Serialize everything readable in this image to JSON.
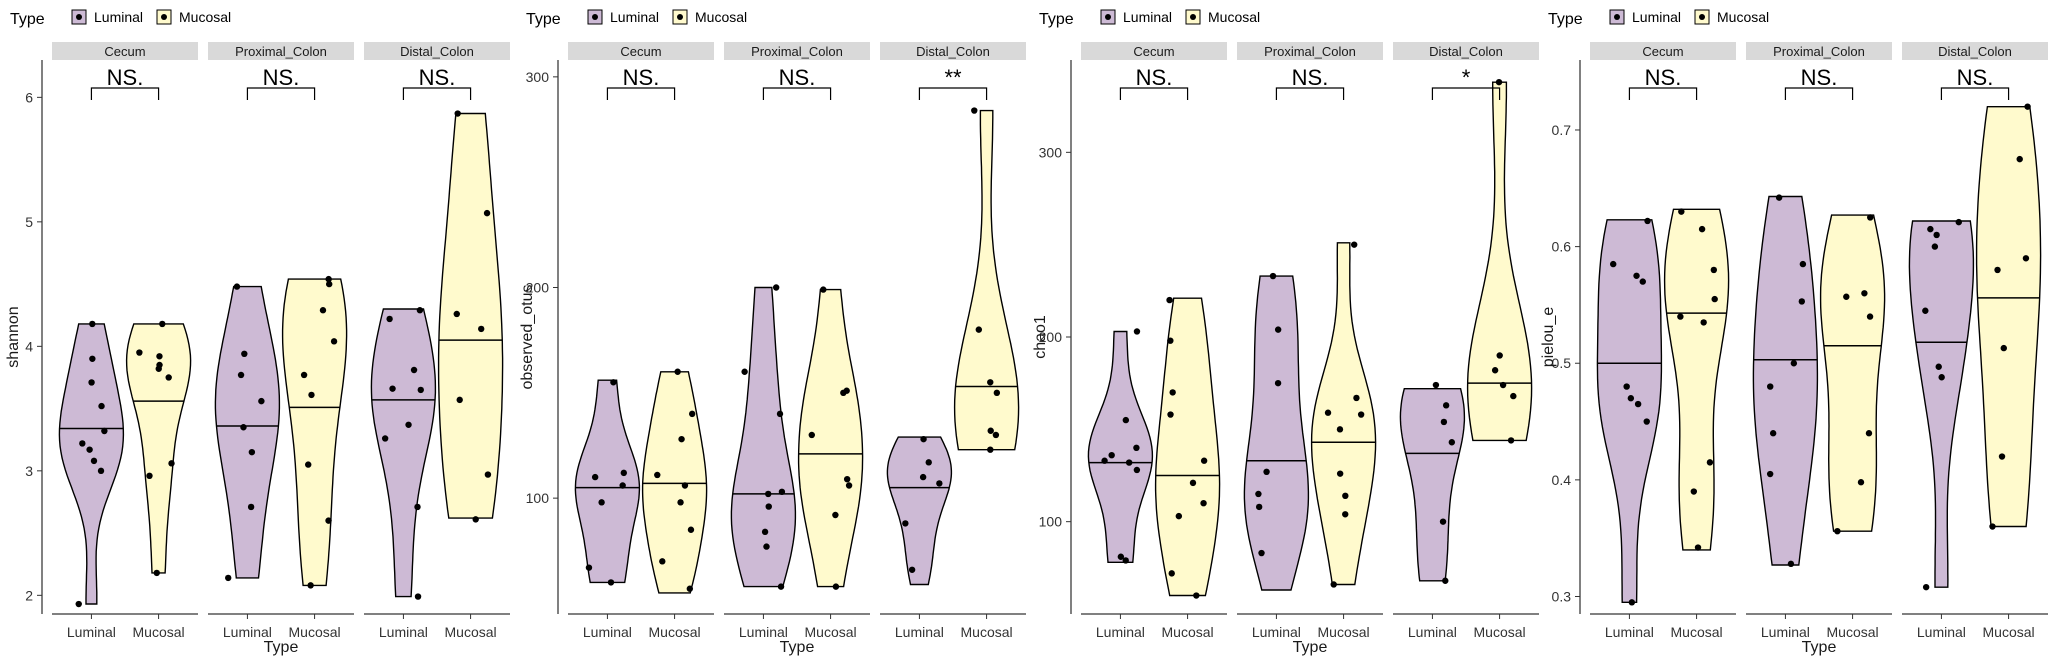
{
  "chart_data": [
    {
      "type": "violin",
      "metric": "shannon",
      "ylabel": "shannon",
      "xlabel": "Type",
      "ylim": [
        1.85,
        6.3
      ],
      "yticks": [
        2,
        3,
        4,
        5,
        6
      ],
      "legend": {
        "title": "Type",
        "entries": [
          "Luminal",
          "Mucosal"
        ],
        "position": "top-left"
      },
      "panels": [
        {
          "strip": "Cecum",
          "significance": "NS.",
          "groups": [
            {
              "name": "Luminal",
              "range": [
                1.93,
                4.18
              ],
              "median": 3.34,
              "points": [
                1.93,
                3.0,
                3.08,
                3.17,
                3.22,
                3.32,
                3.52,
                3.71,
                3.9,
                4.18
              ]
            },
            {
              "name": "Mucosal",
              "range": [
                2.18,
                4.18
              ],
              "median": 3.56,
              "points": [
                2.18,
                2.96,
                3.06,
                3.75,
                3.82,
                3.85,
                3.92,
                3.95,
                4.18
              ]
            }
          ]
        },
        {
          "strip": "Proximal_Colon",
          "significance": "NS.",
          "groups": [
            {
              "name": "Luminal",
              "range": [
                2.14,
                4.48
              ],
              "median": 3.36,
              "points": [
                2.14,
                2.71,
                3.15,
                3.35,
                3.56,
                3.77,
                3.94,
                4.48
              ]
            },
            {
              "name": "Mucosal",
              "range": [
                2.08,
                4.54
              ],
              "median": 3.51,
              "points": [
                2.08,
                2.6,
                3.05,
                3.61,
                3.77,
                4.04,
                4.29,
                4.5,
                4.54
              ]
            }
          ]
        },
        {
          "strip": "Distal_Colon",
          "significance": "NS.",
          "groups": [
            {
              "name": "Luminal",
              "range": [
                1.99,
                4.3
              ],
              "median": 3.57,
              "points": [
                1.99,
                2.71,
                3.26,
                3.37,
                3.65,
                3.66,
                3.81,
                4.22,
                4.29
              ]
            },
            {
              "name": "Mucosal",
              "range": [
                2.62,
                5.87
              ],
              "median": 4.05,
              "points": [
                2.61,
                2.97,
                3.57,
                4.14,
                4.26,
                5.07,
                5.87
              ]
            }
          ]
        }
      ]
    },
    {
      "type": "violin",
      "metric": "observed_otus",
      "ylabel": "observed_otus",
      "xlabel": "Type",
      "ylim": [
        45,
        308
      ],
      "yticks": [
        100,
        200,
        300
      ],
      "legend": {
        "title": "Type",
        "entries": [
          "Luminal",
          "Mucosal"
        ],
        "position": "top-left"
      },
      "panels": [
        {
          "strip": "Cecum",
          "significance": "NS.",
          "groups": [
            {
              "name": "Luminal",
              "range": [
                60,
                156
              ],
              "median": 105,
              "points": [
                60,
                67,
                98,
                106,
                110,
                112,
                155
              ]
            },
            {
              "name": "Mucosal",
              "range": [
                55,
                160
              ],
              "median": 107,
              "points": [
                57,
                70,
                85,
                98,
                106,
                111,
                128,
                140,
                160
              ]
            }
          ]
        },
        {
          "strip": "Proximal_Colon",
          "significance": "NS.",
          "groups": [
            {
              "name": "Luminal",
              "range": [
                58,
                200
              ],
              "median": 102,
              "points": [
                58,
                77,
                84,
                96,
                102,
                103,
                140,
                160,
                200
              ]
            },
            {
              "name": "Mucosal",
              "range": [
                58,
                199
              ],
              "median": 121,
              "points": [
                58,
                92,
                106,
                109,
                130,
                150,
                151,
                199
              ]
            }
          ]
        },
        {
          "strip": "Distal_Colon",
          "significance": "**",
          "groups": [
            {
              "name": "Luminal",
              "range": [
                59,
                129
              ],
              "median": 105,
              "points": [
                66,
                88,
                107,
                110,
                117,
                128
              ]
            },
            {
              "name": "Mucosal",
              "range": [
                123,
                284
              ],
              "median": 153,
              "points": [
                123,
                130,
                132,
                150,
                155,
                180,
                284
              ]
            }
          ]
        }
      ]
    },
    {
      "type": "violin",
      "metric": "chao1",
      "ylabel": "chao1",
      "xlabel": "Type",
      "ylim": [
        50,
        350
      ],
      "yticks": [
        100,
        200,
        300
      ],
      "legend": {
        "title": "Type",
        "entries": [
          "Luminal",
          "Mucosal"
        ],
        "position": "top-left"
      },
      "panels": [
        {
          "strip": "Cecum",
          "significance": "NS.",
          "groups": [
            {
              "name": "Luminal",
              "range": [
                78,
                203
              ],
              "median": 132,
              "points": [
                79,
                81,
                128,
                132,
                133,
                136,
                140,
                155,
                203
              ]
            },
            {
              "name": "Mucosal",
              "range": [
                60,
                221
              ],
              "median": 125,
              "points": [
                60,
                72,
                103,
                110,
                121,
                133,
                158,
                170,
                198,
                220
              ]
            }
          ]
        },
        {
          "strip": "Proximal_Colon",
          "significance": "NS.",
          "groups": [
            {
              "name": "Luminal",
              "range": [
                63,
                233
              ],
              "median": 133,
              "points": [
                83,
                108,
                115,
                127,
                175,
                204,
                233
              ]
            },
            {
              "name": "Mucosal",
              "range": [
                66,
                251
              ],
              "median": 143,
              "points": [
                66,
                104,
                114,
                126,
                150,
                158,
                159,
                167,
                250
              ]
            }
          ]
        },
        {
          "strip": "Distal_Colon",
          "significance": "*",
          "groups": [
            {
              "name": "Luminal",
              "range": [
                68,
                172
              ],
              "median": 137,
              "points": [
                68,
                100,
                143,
                154,
                163,
                174
              ]
            },
            {
              "name": "Mucosal",
              "range": [
                144,
                338
              ],
              "median": 175,
              "points": [
                144,
                168,
                174,
                182,
                190,
                338
              ]
            }
          ]
        }
      ]
    },
    {
      "type": "violin",
      "metric": "pielou_e",
      "ylabel": "pielou_e",
      "xlabel": "Type",
      "ylim": [
        0.285,
        0.76
      ],
      "yticks": [
        0.3,
        0.4,
        0.5,
        0.6,
        0.7
      ],
      "legend": {
        "title": "Type",
        "entries": [
          "Luminal",
          "Mucosal"
        ],
        "position": "top-left"
      },
      "panels": [
        {
          "strip": "Cecum",
          "significance": "NS.",
          "groups": [
            {
              "name": "Luminal",
              "range": [
                0.295,
                0.623
              ],
              "median": 0.5,
              "points": [
                0.295,
                0.45,
                0.465,
                0.47,
                0.48,
                0.57,
                0.575,
                0.585,
                0.622
              ]
            },
            {
              "name": "Mucosal",
              "range": [
                0.34,
                0.632
              ],
              "median": 0.543,
              "points": [
                0.342,
                0.39,
                0.415,
                0.535,
                0.54,
                0.555,
                0.58,
                0.615,
                0.63
              ]
            }
          ]
        },
        {
          "strip": "Proximal_Colon",
          "significance": "NS.",
          "groups": [
            {
              "name": "Luminal",
              "range": [
                0.327,
                0.643
              ],
              "median": 0.503,
              "points": [
                0.328,
                0.405,
                0.44,
                0.48,
                0.5,
                0.553,
                0.585,
                0.642
              ]
            },
            {
              "name": "Mucosal",
              "range": [
                0.356,
                0.627
              ],
              "median": 0.515,
              "points": [
                0.356,
                0.398,
                0.44,
                0.54,
                0.557,
                0.56,
                0.625
              ]
            }
          ]
        },
        {
          "strip": "Distal_Colon",
          "significance": "NS.",
          "groups": [
            {
              "name": "Luminal",
              "range": [
                0.308,
                0.622
              ],
              "median": 0.518,
              "points": [
                0.308,
                0.488,
                0.497,
                0.545,
                0.6,
                0.61,
                0.615,
                0.621
              ]
            },
            {
              "name": "Mucosal",
              "range": [
                0.36,
                0.72
              ],
              "median": 0.556,
              "points": [
                0.36,
                0.42,
                0.513,
                0.58,
                0.59,
                0.675,
                0.72
              ]
            }
          ]
        }
      ]
    }
  ],
  "colors": {
    "Luminal": "#cdbad5",
    "Mucosal": "#fffacd",
    "strip_background": "#d9d9d9",
    "outline": "#000000"
  }
}
